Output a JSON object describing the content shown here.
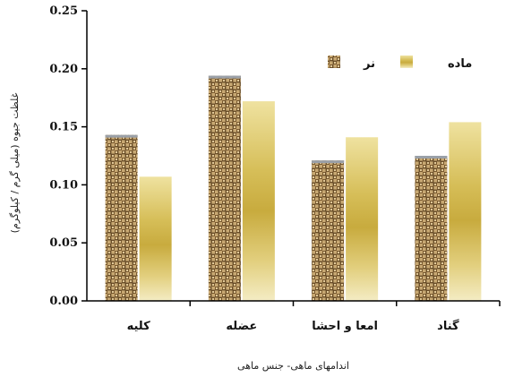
{
  "chart_data": {
    "type": "bar",
    "categories": [
      "کلیه",
      "عضله",
      "امعا و احشا",
      "گناد"
    ],
    "series": [
      {
        "name": "نر",
        "values": [
          0.143,
          0.194,
          0.121,
          0.125
        ]
      },
      {
        "name": "ماده",
        "values": [
          0.107,
          0.172,
          0.141,
          0.154
        ]
      }
    ],
    "xlabel": "اندامهای ماهی- جنس ماهی",
    "ylabel": "غلظت جیوه (میلی گرم / کیلوگرم)",
    "ylim": [
      0,
      0.25
    ],
    "yticks": [
      "0.00",
      "0.05",
      "0.10",
      "0.15",
      "0.20",
      "0.25"
    ],
    "legend_position": "top-right",
    "grid": false,
    "colors": {
      "male": "#8a6a3a",
      "female": "#d9c25a",
      "axis": "#000000"
    }
  }
}
